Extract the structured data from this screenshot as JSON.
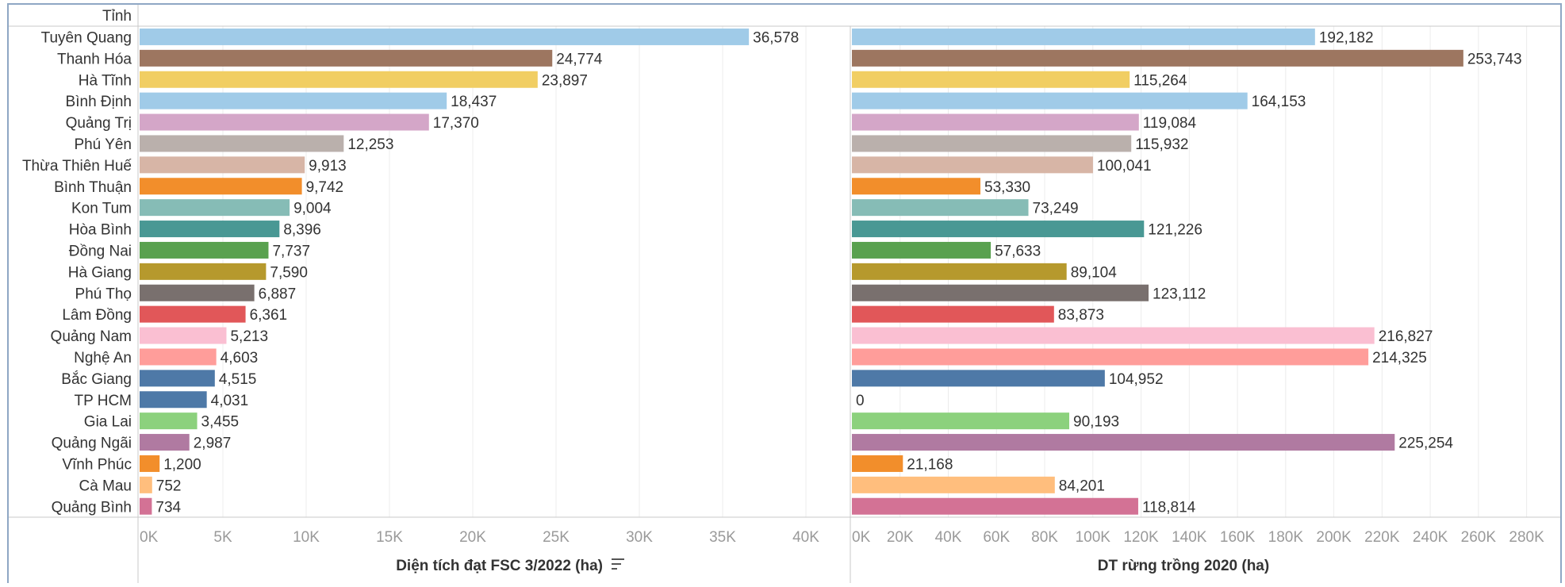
{
  "header": {
    "dimension_label": "Tỉnh"
  },
  "chart_data": {
    "type": "bar",
    "orientation": "horizontal",
    "categories": [
      "Tuyên Quang",
      "Thanh Hóa",
      "Hà Tĩnh",
      "Bình Định",
      "Quảng Trị",
      "Phú Yên",
      "Thừa Thiên Huế",
      "Bình Thuận",
      "Kon Tum",
      "Hòa Bình",
      "Đồng Nai",
      "Hà Giang",
      "Phú Thọ",
      "Lâm Đồng",
      "Quảng Nam",
      "Nghệ An",
      "Bắc Giang",
      "TP HCM",
      "Gia Lai",
      "Quảng Ngãi",
      "Vĩnh Phúc",
      "Cà Mau",
      "Quảng Bình"
    ],
    "category_colors": [
      "#a0cbe8",
      "#9d7660",
      "#f1ce63",
      "#a0cbe8",
      "#d4a6c8",
      "#bab0ac",
      "#d7b5a6",
      "#f28e2b",
      "#86bcb6",
      "#499894",
      "#59a14f",
      "#b6992d",
      "#79706e",
      "#e15759",
      "#fabfd2",
      "#ff9d9a",
      "#4e79a7",
      "#4e79a7",
      "#8cd17d",
      "#b07aa1",
      "#f28e2b",
      "#ffbe7d",
      "#d37295"
    ],
    "series": [
      {
        "name": "Diện tích đạt FSC 3/2022 (ha)",
        "values": [
          36578,
          24774,
          23897,
          18437,
          17370,
          12253,
          9913,
          9742,
          9004,
          8396,
          7737,
          7590,
          6887,
          6361,
          5213,
          4603,
          4515,
          4031,
          3455,
          2987,
          1200,
          752,
          734
        ],
        "value_labels": [
          "36,578",
          "24,774",
          "23,897",
          "18,437",
          "17,370",
          "12,253",
          "9,913",
          "9,742",
          "9,004",
          "8,396",
          "7,737",
          "7,590",
          "6,887",
          "6,361",
          "5,213",
          "4,603",
          "4,515",
          "4,031",
          "3,455",
          "2,987",
          "1,200",
          "752",
          "734"
        ],
        "xlim": [
          0,
          42000
        ],
        "ticks": [
          0,
          5000,
          10000,
          15000,
          20000,
          25000,
          30000,
          35000,
          40000
        ],
        "tick_labels": [
          "0K",
          "5K",
          "10K",
          "15K",
          "20K",
          "25K",
          "30K",
          "35K",
          "40K"
        ],
        "axis_title": "Diện tích đạt FSC 3/2022 (ha)",
        "sorted_descending": true
      },
      {
        "name": "DT rừng trồng 2020 (ha)",
        "values": [
          192182,
          253743,
          115264,
          164153,
          119084,
          115932,
          100041,
          53330,
          73249,
          121226,
          57633,
          89104,
          123112,
          83873,
          216827,
          214325,
          104952,
          0,
          90193,
          225254,
          21168,
          84201,
          118814
        ],
        "value_labels": [
          "192,182",
          "253,743",
          "115,264",
          "164,153",
          "119,084",
          "115,932",
          "100,041",
          "53,330",
          "73,249",
          "121,226",
          "57,633",
          "89,104",
          "123,112",
          "83,873",
          "216,827",
          "214,325",
          "104,952",
          "0",
          "90,193",
          "225,254",
          "21,168",
          "84,201",
          "118,814"
        ],
        "xlim": [
          0,
          290000
        ],
        "ticks": [
          0,
          20000,
          40000,
          60000,
          80000,
          100000,
          120000,
          140000,
          160000,
          180000,
          200000,
          220000,
          240000,
          260000,
          280000
        ],
        "tick_labels": [
          "0K",
          "20K",
          "40K",
          "60K",
          "80K",
          "100K",
          "120K",
          "140K",
          "160K",
          "180K",
          "200K",
          "220K",
          "240K",
          "260K",
          "280K"
        ],
        "axis_title": "DT rừng trồng 2020 (ha)"
      }
    ],
    "grid": true,
    "legend": "none"
  }
}
